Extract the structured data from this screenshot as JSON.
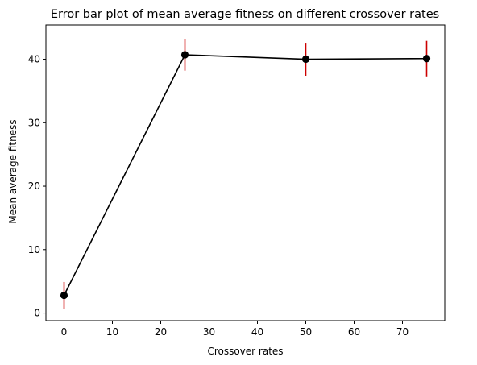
{
  "chart_data": {
    "type": "line",
    "title": "Error bar plot of mean average fitness on different crossover rates",
    "xlabel": "Crossover rates",
    "ylabel": "Mean average fitness",
    "xlim": [
      -3.75,
      78.75
    ],
    "ylim": [
      -1.2,
      45.4
    ],
    "xticks": [
      0,
      10,
      20,
      30,
      40,
      50,
      60,
      70
    ],
    "yticks": [
      0,
      10,
      20,
      30,
      40
    ],
    "grid": false,
    "series": [
      {
        "name": "Mean average fitness",
        "x": [
          0,
          25,
          50,
          75
        ],
        "y": [
          2.8,
          40.7,
          40.0,
          40.1
        ],
        "error": [
          2.1,
          2.5,
          2.6,
          2.8
        ],
        "line_color": "#000000",
        "marker_color": "#000000",
        "error_color": "#cc0000"
      }
    ]
  }
}
